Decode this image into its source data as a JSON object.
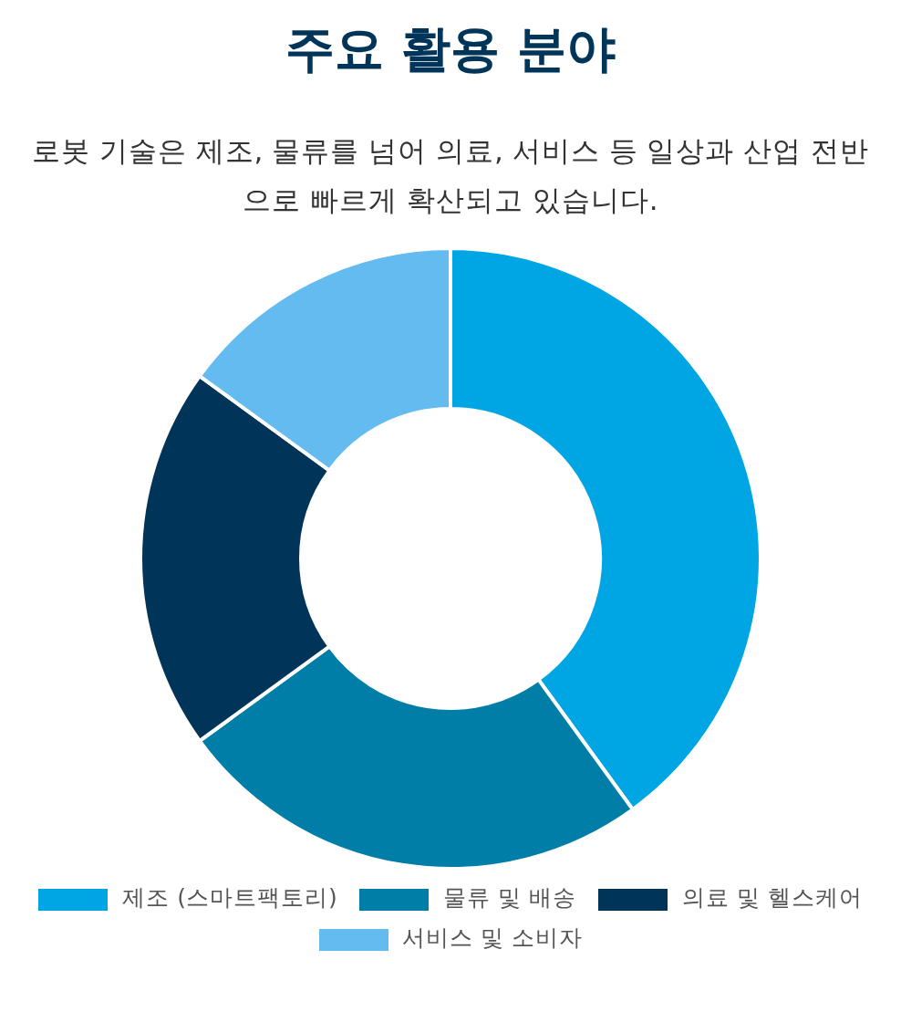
{
  "chart_data": {
    "type": "donut",
    "title": "주요 활용 분야",
    "subtitle": "로봇 기술은 제조, 물류를 넘어 의료, 서비스 등 일상과 산업 전반으로 빠르게 확산되고 있습니다.",
    "categories": [
      "제조 (스마트팩토리)",
      "물류 및 배송",
      "의료 및 헬스케어",
      "서비스 및 소비자"
    ],
    "values": [
      40,
      25,
      20,
      15
    ],
    "colors": [
      "#00a5e3",
      "#007ea7",
      "#003459",
      "#63bbf0"
    ],
    "legend": "bottom"
  }
}
